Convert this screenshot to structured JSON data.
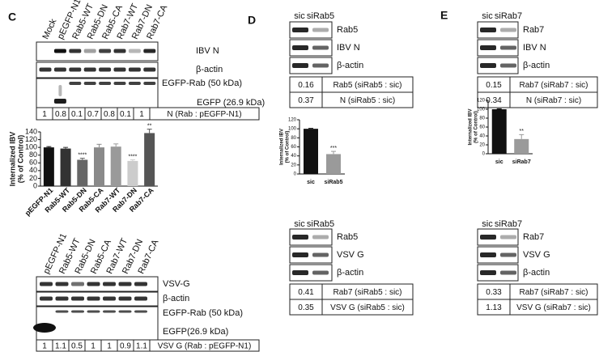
{
  "panel_c": {
    "label": "C",
    "upper": {
      "lanes": [
        "Mock",
        "pEGFP-N1",
        "Rab5-WT",
        "Rab5-DN",
        "Rab5-CA",
        "Rab7-WT",
        "Rab7-DN",
        "Rab7-CA"
      ],
      "blots": [
        "IBV N",
        "β-actin",
        "EGFP-Rab (50 kDa)",
        "EGFP (26.9 kDa)"
      ],
      "ratios": [
        1,
        0.8,
        0.1,
        0.7,
        0.8,
        0.1,
        1
      ],
      "ratio_label": "N (Rab : pEGFP-N1)"
    },
    "lower": {
      "lanes": [
        "pEGFP-N1",
        "Rab5-WT",
        "Rab5-DN",
        "Rab5-CA",
        "Rab7-WT",
        "Rab7-DN",
        "Rab7-CA"
      ],
      "blots": [
        "VSV-G",
        "β-actin",
        "EGFP-Rab (50 kDa)",
        "EGFP(26.9 kDa)"
      ],
      "ratios": [
        1,
        1.1,
        0.5,
        1,
        1,
        0.9,
        1.1
      ],
      "ratio_label": "VSV G (Rab : pEGFP-N1)"
    }
  },
  "panel_d": {
    "label": "D",
    "upper": {
      "lanes": [
        "sic",
        "siRab5"
      ],
      "blots": [
        "Rab5",
        "IBV N",
        "β-actin"
      ],
      "rows": [
        [
          0.16,
          "Rab5 (siRab5 : sic)"
        ],
        [
          0.37,
          "N (siRab5 : sic)"
        ]
      ]
    },
    "lower": {
      "lanes": [
        "sic",
        "siRab5"
      ],
      "blots": [
        "Rab5",
        "VSV G",
        "β-actin"
      ],
      "rows": [
        [
          0.41,
          "Rab7 (siRab5 : sic)"
        ],
        [
          0.35,
          "VSV G (siRab5 : sic)"
        ]
      ]
    }
  },
  "panel_e": {
    "label": "E",
    "upper": {
      "lanes": [
        "sic",
        "siRab7"
      ],
      "blots": [
        "Rab7",
        "IBV N",
        "β-actin"
      ],
      "rows": [
        [
          0.15,
          "Rab7 (siRab7 : sic)"
        ],
        [
          0.34,
          "N (siRab7 : sic)"
        ]
      ]
    },
    "lower": {
      "lanes": [
        "sic",
        "siRab7"
      ],
      "blots": [
        "Rab7",
        "VSV G",
        "β-actin"
      ],
      "rows": [
        [
          0.33,
          "Rab7 (siRab7 : sic)"
        ],
        [
          1.13,
          "VSV G (siRab7 : sic)"
        ]
      ]
    }
  },
  "chart_data": [
    {
      "type": "bar",
      "ylabel": [
        "Internalized IBV",
        "(% of Control)"
      ],
      "categories": [
        "pEGFP-N1",
        "Rab5-WT",
        "Rab5-DN",
        "Rab5-CA",
        "Rab7-WT",
        "Rab7-DN",
        "Rab7-CA"
      ],
      "values": [
        100,
        97,
        68,
        100,
        102,
        65,
        137
      ],
      "errors": [
        2,
        3,
        4,
        8,
        7,
        3,
        10
      ],
      "significance": [
        null,
        null,
        "****",
        null,
        null,
        "****",
        "**"
      ],
      "colors": [
        "#111111",
        "#333333",
        "#666666",
        "#8a8a8a",
        "#9a9a9a",
        "#cccccc",
        "#555555"
      ],
      "ylim": [
        0,
        140
      ],
      "yticks": [
        0,
        20,
        40,
        60,
        80,
        100,
        120,
        140
      ]
    },
    {
      "type": "bar",
      "ylabel": [
        "Internalized IBV",
        "(% of Control)"
      ],
      "categories": [
        "sic",
        "siRab5"
      ],
      "values": [
        100,
        44
      ],
      "errors": [
        1,
        6
      ],
      "significance": [
        null,
        "***"
      ],
      "colors": [
        "#111111",
        "#9a9a9a"
      ],
      "ylim": [
        0,
        120
      ],
      "yticks": [
        0,
        20,
        40,
        60,
        80,
        100,
        120
      ]
    },
    {
      "type": "bar",
      "ylabel": [
        "Internalized IBV",
        "(% of Control)"
      ],
      "categories": [
        "sic",
        "siRab7"
      ],
      "values": [
        100,
        33
      ],
      "errors": [
        1,
        10
      ],
      "significance": [
        null,
        "**"
      ],
      "colors": [
        "#111111",
        "#9a9a9a"
      ],
      "ylim": [
        0,
        120
      ],
      "yticks": [
        0,
        20,
        40,
        60,
        80,
        100,
        120
      ]
    }
  ]
}
